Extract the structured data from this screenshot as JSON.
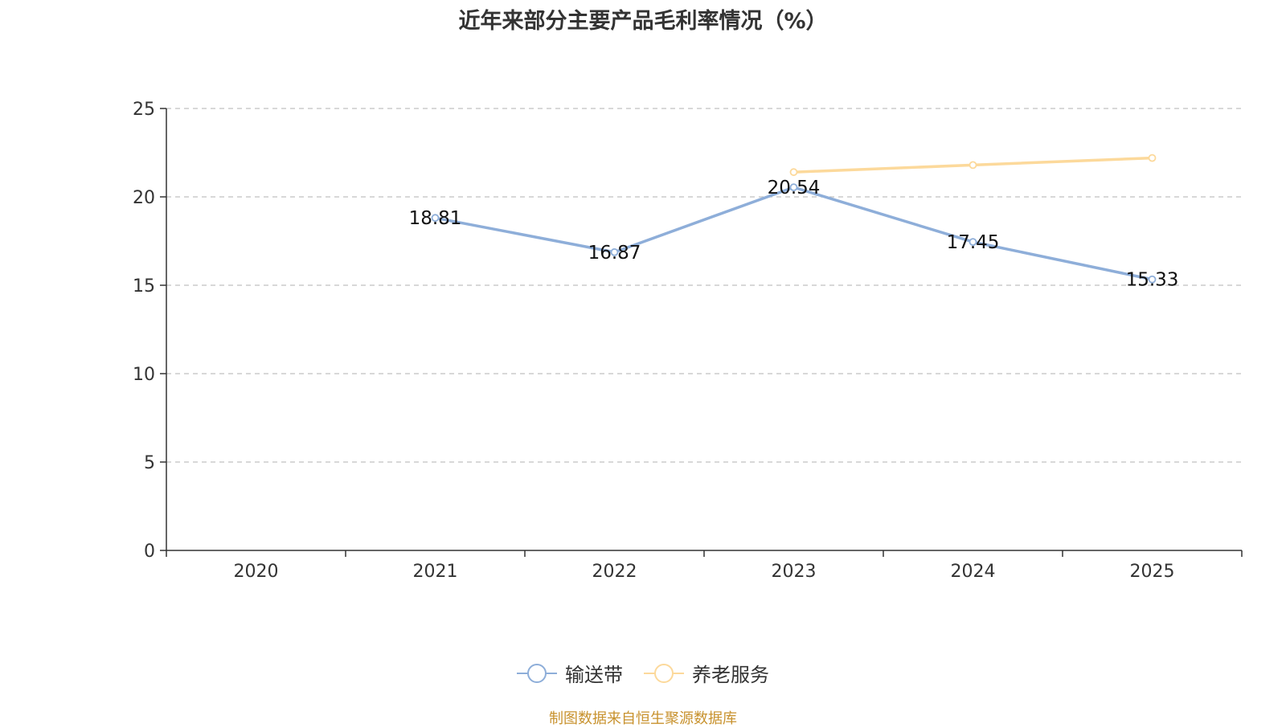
{
  "title": "近年来部分主要产品毛利率情况（%）",
  "source": "制图数据来自恒生聚源数据库",
  "colors": {
    "series1": "#8eaed9",
    "series2": "#fcd99b",
    "source": "#c8922e",
    "axis": "#333333",
    "grid": "#cccccc"
  },
  "legend": [
    {
      "label": "输送带",
      "color": "#8eaed9"
    },
    {
      "label": "养老服务",
      "color": "#fcd99b"
    }
  ],
  "chart_data": {
    "type": "line",
    "categories": [
      "2020",
      "2021",
      "2022",
      "2023",
      "2024",
      "2025"
    ],
    "ylim": [
      0,
      25
    ],
    "yticks": [
      0,
      5,
      10,
      15,
      20,
      25
    ],
    "grid": true,
    "legend_position": "bottom",
    "series": [
      {
        "name": "输送带",
        "values": [
          null,
          18.81,
          16.87,
          20.54,
          17.45,
          15.33
        ],
        "labels": true
      },
      {
        "name": "养老服务",
        "values": [
          null,
          null,
          null,
          21.4,
          21.8,
          22.2
        ],
        "labels": false
      }
    ]
  }
}
